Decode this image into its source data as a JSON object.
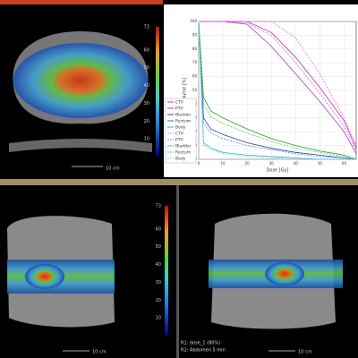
{
  "panels": {
    "axial": {
      "scale": "10 cm"
    },
    "sagittal": {
      "scale": "10 cm"
    },
    "coronal": {
      "scale": "10 cm",
      "info": [
        "R1: dose_1 (80%)",
        "R2: Abdomen 5 mm"
      ]
    },
    "colorbar": {
      "lim": [
        0,
        73
      ],
      "ticks": [
        10,
        20,
        30,
        40,
        50,
        60,
        73
      ]
    }
  },
  "chart_data": {
    "type": "line",
    "x_label": "Dose [Gy]",
    "y_label": "Volume [%]",
    "x": [
      0,
      2,
      5,
      10,
      20,
      30,
      40,
      50,
      60,
      65
    ],
    "xlim": [
      0,
      65
    ],
    "ylim": [
      0,
      100
    ],
    "xticks": [
      0,
      10,
      20,
      30,
      40,
      50,
      60
    ],
    "yticks": [
      0,
      10,
      20,
      30,
      40,
      50,
      60,
      70,
      80,
      90,
      100
    ],
    "legend": "left",
    "series": [
      {
        "name": "CTV",
        "color": "#d020d0",
        "dashed": false,
        "values": [
          100,
          100,
          100,
          100,
          100,
          92,
          74,
          52,
          28,
          8
        ]
      },
      {
        "name": "PTV",
        "color": "#a040c0",
        "dashed": false,
        "values": [
          100,
          100,
          100,
          100,
          98,
          82,
          62,
          42,
          20,
          4
        ]
      },
      {
        "name": "Bladder",
        "color": "#2040c0",
        "dashed": false,
        "values": [
          100,
          30,
          22,
          18,
          12,
          8,
          5,
          3,
          1,
          0
        ]
      },
      {
        "name": "Rectum",
        "color": "#20a020",
        "dashed": false,
        "values": [
          100,
          45,
          35,
          30,
          22,
          15,
          10,
          6,
          3,
          0
        ]
      },
      {
        "name": "Body",
        "color": "#30b0c0",
        "dashed": false,
        "values": [
          100,
          12,
          8,
          5,
          3,
          2,
          1,
          0,
          0,
          0
        ]
      },
      {
        "name": "CTV",
        "color": "#e070e0",
        "dashed": true,
        "values": [
          100,
          100,
          100,
          100,
          100,
          100,
          88,
          62,
          30,
          10
        ]
      },
      {
        "name": "PTV",
        "color": "#c070d0",
        "dashed": true,
        "values": [
          100,
          100,
          100,
          100,
          99,
          90,
          70,
          48,
          24,
          6
        ]
      },
      {
        "name": "Bladder",
        "color": "#6080e0",
        "dashed": true,
        "values": [
          100,
          26,
          19,
          15,
          10,
          7,
          4,
          2,
          1,
          0
        ]
      },
      {
        "name": "Rectum",
        "color": "#60c060",
        "dashed": true,
        "values": [
          100,
          40,
          31,
          26,
          19,
          13,
          8,
          5,
          2,
          0
        ]
      },
      {
        "name": "Body",
        "color": "#80d0e0",
        "dashed": true,
        "values": [
          100,
          10,
          7,
          4,
          2,
          1,
          1,
          0,
          0,
          0
        ]
      }
    ]
  }
}
